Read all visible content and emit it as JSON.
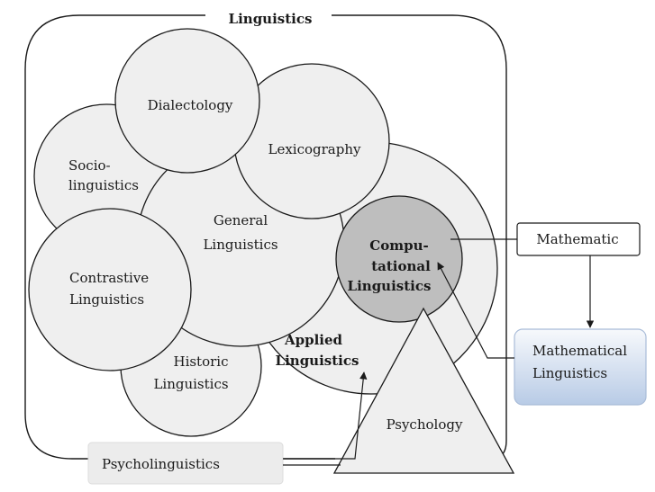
{
  "title": "Linguistics",
  "areas": {
    "dialectology": "Dialectology",
    "lexicography": "Lexicography",
    "sociolinguistics": [
      "Socio-",
      "linguistics"
    ],
    "general_linguistics": [
      "General",
      "Linguistics"
    ],
    "computational_linguistics": [
      "Compu-",
      "tational",
      "Linguistics"
    ],
    "contrastive_linguistics": [
      "Contrastive",
      "Linguistics"
    ],
    "applied_linguistics": [
      "Applied",
      "Linguistics"
    ],
    "historic_linguistics": [
      "Historic",
      "Linguistics"
    ],
    "psychology": "Psychology"
  },
  "boxes": {
    "mathematic": "Mathematic",
    "mathematical_linguistics": [
      "Mathematical",
      "Linguistics"
    ],
    "psycholinguistics": "Psycholinguistics"
  },
  "colors": {
    "light_fill": "#efefef",
    "computational_fill": "#bebebe",
    "math_ling_gradient_top": "#f7f9fc",
    "math_ling_gradient_bottom": "#b8cbe6",
    "stroke": "#1a1a1a"
  }
}
